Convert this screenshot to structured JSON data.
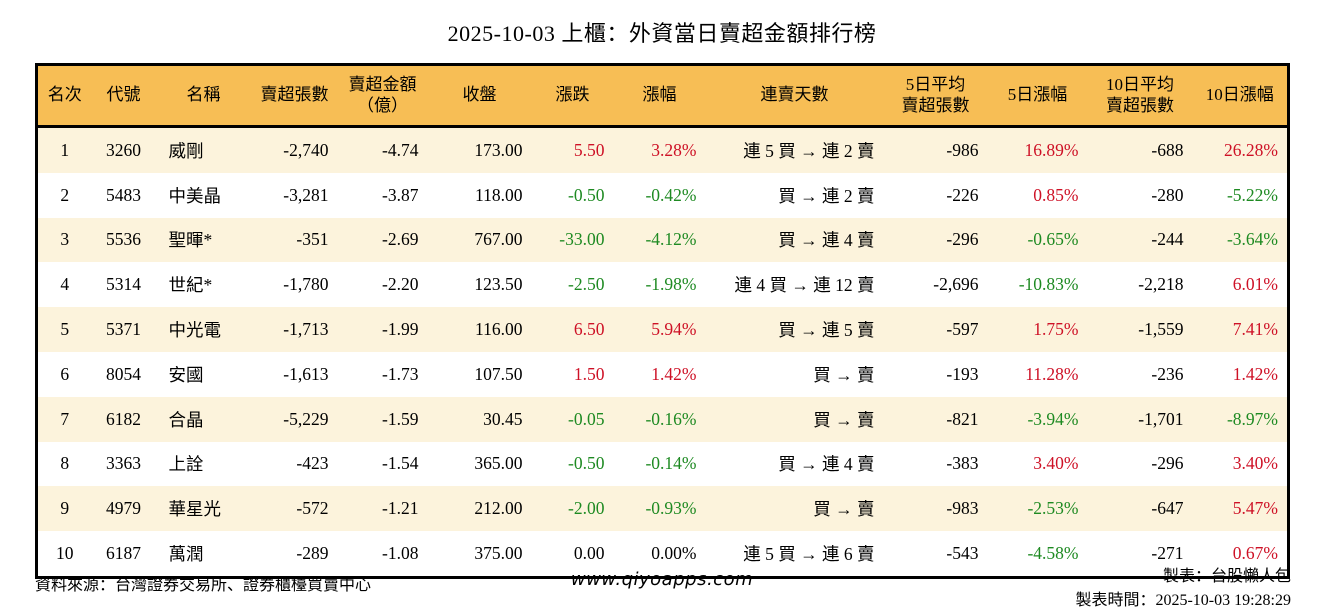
{
  "title": "2025-10-03 上櫃：外資當日賣超金額排行榜",
  "colors": {
    "header_bg": "#F7BE55",
    "stripe_bg": "#FCF3DC",
    "up_red": "#CE1126",
    "down_green": "#1E8A22",
    "flat_black": "#000000"
  },
  "columns": [
    {
      "label": "名次"
    },
    {
      "label": "代號"
    },
    {
      "label": "名稱"
    },
    {
      "label": "賣超張數"
    },
    {
      "label": "賣超金額\n（億）"
    },
    {
      "label": "收盤"
    },
    {
      "label": "漲跌"
    },
    {
      "label": "漲幅"
    },
    {
      "label": "連賣天數"
    },
    {
      "label": "5日平均\n賣超張數"
    },
    {
      "label": "5日漲幅"
    },
    {
      "label": "10日平均\n賣超張數"
    },
    {
      "label": "10日漲幅"
    }
  ],
  "rows": [
    {
      "rank": "1",
      "code": "3260",
      "name": "威剛",
      "sell_volume": "-2,740",
      "sell_amount": "-4.74",
      "close": "173.00",
      "change": "5.50",
      "change_pct": "3.28%",
      "chg_dir": "up",
      "streak": "連 5 買 → 連 2 賣",
      "avg5": "-986",
      "pct5": "16.89%",
      "pct5_dir": "up",
      "avg10": "-688",
      "pct10": "26.28%",
      "pct10_dir": "up"
    },
    {
      "rank": "2",
      "code": "5483",
      "name": "中美晶",
      "sell_volume": "-3,281",
      "sell_amount": "-3.87",
      "close": "118.00",
      "change": "-0.50",
      "change_pct": "-0.42%",
      "chg_dir": "down",
      "streak": "買 → 連 2 賣",
      "avg5": "-226",
      "pct5": "0.85%",
      "pct5_dir": "up",
      "avg10": "-280",
      "pct10": "-5.22%",
      "pct10_dir": "down"
    },
    {
      "rank": "3",
      "code": "5536",
      "name": "聖暉*",
      "sell_volume": "-351",
      "sell_amount": "-2.69",
      "close": "767.00",
      "change": "-33.00",
      "change_pct": "-4.12%",
      "chg_dir": "down",
      "streak": "買 → 連 4 賣",
      "avg5": "-296",
      "pct5": "-0.65%",
      "pct5_dir": "down",
      "avg10": "-244",
      "pct10": "-3.64%",
      "pct10_dir": "down"
    },
    {
      "rank": "4",
      "code": "5314",
      "name": "世紀*",
      "sell_volume": "-1,780",
      "sell_amount": "-2.20",
      "close": "123.50",
      "change": "-2.50",
      "change_pct": "-1.98%",
      "chg_dir": "down",
      "streak": "連 4 買 → 連 12 賣",
      "avg5": "-2,696",
      "pct5": "-10.83%",
      "pct5_dir": "down",
      "avg10": "-2,218",
      "pct10": "6.01%",
      "pct10_dir": "up"
    },
    {
      "rank": "5",
      "code": "5371",
      "name": "中光電",
      "sell_volume": "-1,713",
      "sell_amount": "-1.99",
      "close": "116.00",
      "change": "6.50",
      "change_pct": "5.94%",
      "chg_dir": "up",
      "streak": "買 → 連 5 賣",
      "avg5": "-597",
      "pct5": "1.75%",
      "pct5_dir": "up",
      "avg10": "-1,559",
      "pct10": "7.41%",
      "pct10_dir": "up"
    },
    {
      "rank": "6",
      "code": "8054",
      "name": "安國",
      "sell_volume": "-1,613",
      "sell_amount": "-1.73",
      "close": "107.50",
      "change": "1.50",
      "change_pct": "1.42%",
      "chg_dir": "up",
      "streak": "買 → 賣",
      "avg5": "-193",
      "pct5": "11.28%",
      "pct5_dir": "up",
      "avg10": "-236",
      "pct10": "1.42%",
      "pct10_dir": "up"
    },
    {
      "rank": "7",
      "code": "6182",
      "name": "合晶",
      "sell_volume": "-5,229",
      "sell_amount": "-1.59",
      "close": "30.45",
      "change": "-0.05",
      "change_pct": "-0.16%",
      "chg_dir": "down",
      "streak": "買 → 賣",
      "avg5": "-821",
      "pct5": "-3.94%",
      "pct5_dir": "down",
      "avg10": "-1,701",
      "pct10": "-8.97%",
      "pct10_dir": "down"
    },
    {
      "rank": "8",
      "code": "3363",
      "name": "上詮",
      "sell_volume": "-423",
      "sell_amount": "-1.54",
      "close": "365.00",
      "change": "-0.50",
      "change_pct": "-0.14%",
      "chg_dir": "down",
      "streak": "買 → 連 4 賣",
      "avg5": "-383",
      "pct5": "3.40%",
      "pct5_dir": "up",
      "avg10": "-296",
      "pct10": "3.40%",
      "pct10_dir": "up"
    },
    {
      "rank": "9",
      "code": "4979",
      "name": "華星光",
      "sell_volume": "-572",
      "sell_amount": "-1.21",
      "close": "212.00",
      "change": "-2.00",
      "change_pct": "-0.93%",
      "chg_dir": "down",
      "streak": "買 → 賣",
      "avg5": "-983",
      "pct5": "-2.53%",
      "pct5_dir": "down",
      "avg10": "-647",
      "pct10": "5.47%",
      "pct10_dir": "up"
    },
    {
      "rank": "10",
      "code": "6187",
      "name": "萬潤",
      "sell_volume": "-289",
      "sell_amount": "-1.08",
      "close": "375.00",
      "change": "0.00",
      "change_pct": "0.00%",
      "chg_dir": "flat",
      "streak": "連 5 買 → 連 6 賣",
      "avg5": "-543",
      "pct5": "-4.58%",
      "pct5_dir": "down",
      "avg10": "-271",
      "pct10": "0.67%",
      "pct10_dir": "up"
    }
  ],
  "footer": {
    "source": "資料來源：台灣證券交易所、證券櫃檯買賣中心",
    "website": "www.qiyoapps.com",
    "maker": "製表：台股懶人包",
    "made_time": "製表時間：2025-10-03 19:28:29"
  }
}
